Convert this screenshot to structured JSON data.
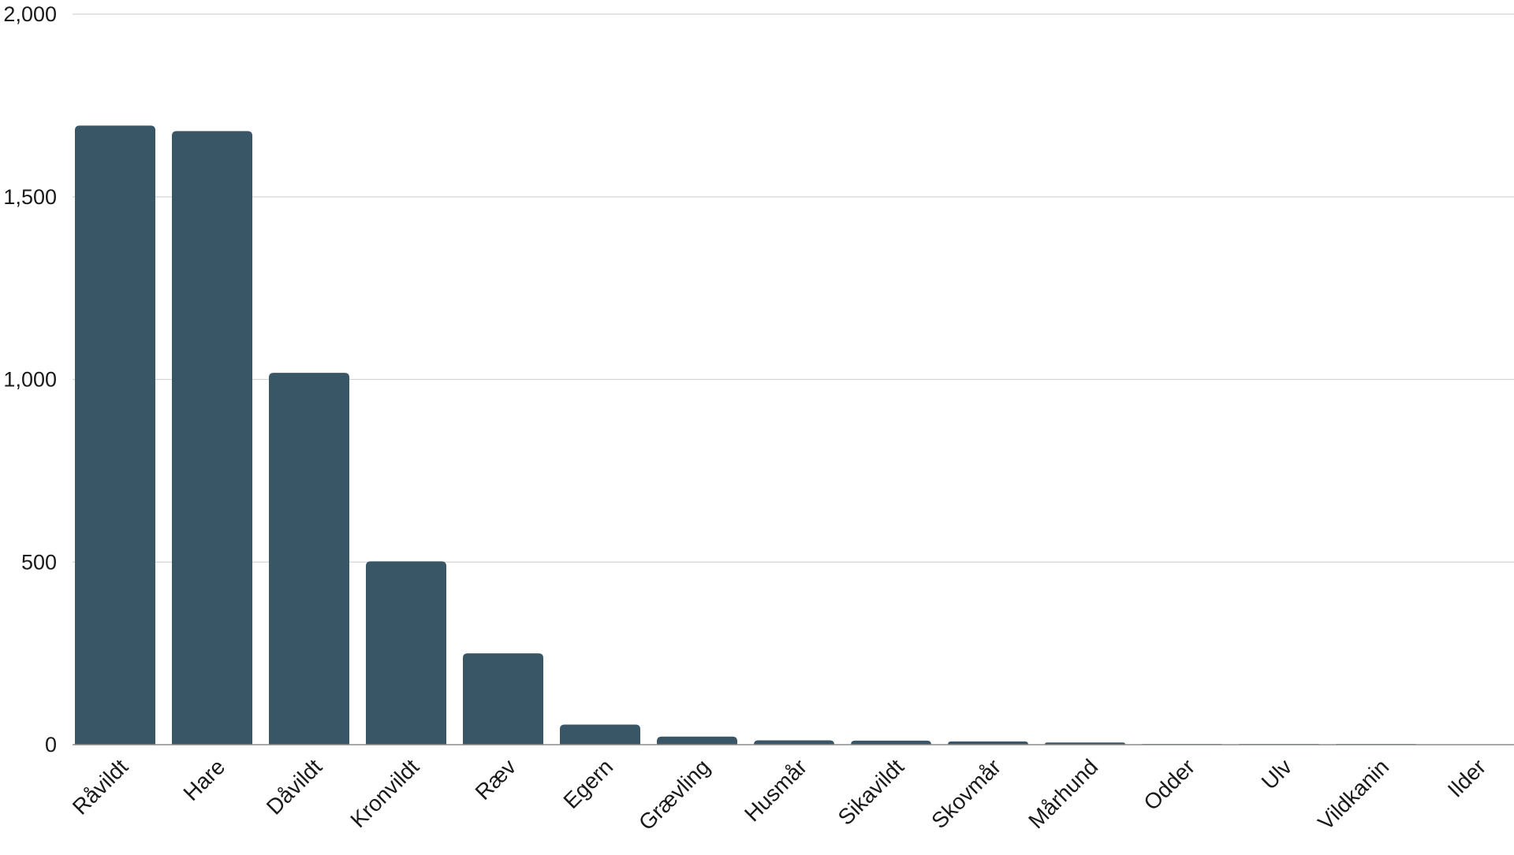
{
  "chart_data": {
    "type": "bar",
    "categories": [
      "Råvildt",
      "Hare",
      "Dåvildt",
      "Kronvildt",
      "Ræv",
      "Egern",
      "Grævling",
      "Husmår",
      "Sikavildt",
      "Skovmår",
      "Mårhund",
      "Odder",
      "Ulv",
      "Vildkanin",
      "Ilder"
    ],
    "values": [
      1695,
      1680,
      1018,
      502,
      250,
      55,
      22,
      12,
      11,
      9,
      6,
      2,
      2,
      2,
      1
    ],
    "y_ticks": [
      0,
      500,
      1000,
      1500,
      2000
    ],
    "y_tick_labels": [
      "0",
      "500",
      "1,000",
      "1,500",
      "2,000"
    ],
    "ylim": [
      0,
      2000
    ],
    "grid": true,
    "colors": {
      "bar": "#395666",
      "grid": "#d4d4d4",
      "axis": "#8c8c8c"
    }
  }
}
